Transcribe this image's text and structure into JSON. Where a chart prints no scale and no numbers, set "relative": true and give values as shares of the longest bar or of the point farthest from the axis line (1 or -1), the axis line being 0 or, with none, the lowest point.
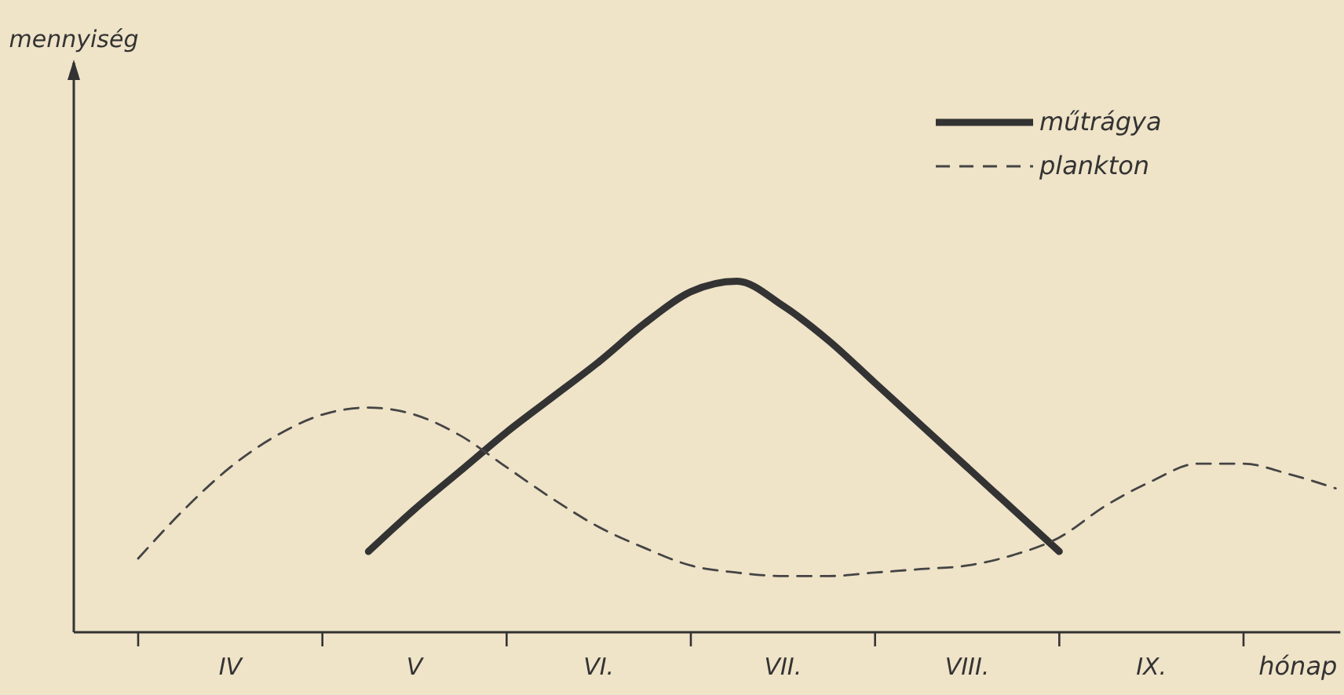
{
  "chart_data": {
    "type": "line",
    "relative": true,
    "xlabel": "hónap",
    "annotations": [
      "mennyiség"
    ],
    "categories": [
      null,
      null,
      "IV",
      null,
      null,
      null,
      "V",
      null,
      null,
      null,
      "VI.",
      null,
      null,
      null,
      "VII.",
      null,
      null,
      null,
      "VIII.",
      null,
      null,
      null,
      "IX.",
      null,
      null,
      null,
      null
    ],
    "legend": "top right",
    "grid": false,
    "marker": "none",
    "series": [
      {
        "name": "műtrágya",
        "color": "#333333",
        "line_style": "solid",
        "values": [
          null,
          null,
          null,
          null,
          null,
          0.23,
          0.35,
          0.46,
          0.57,
          0.67,
          0.77,
          0.88,
          0.97,
          1,
          0.93,
          0.83,
          0.71,
          0.59,
          0.47,
          0.35,
          0.23,
          null,
          null,
          null,
          null,
          null,
          null
        ]
      },
      {
        "name": "plankton",
        "color": "#444444",
        "line_style": "dashed",
        "values": [
          0.21,
          0.35,
          0.47,
          0.56,
          0.62,
          0.64,
          0.62,
          0.56,
          0.47,
          0.38,
          0.3,
          0.24,
          0.19,
          0.17,
          0.16,
          0.16,
          0.17,
          0.18,
          0.19,
          0.22,
          0.27,
          0.36,
          0.43,
          0.48,
          0.48,
          0.45,
          0.41
        ]
      }
    ]
  }
}
